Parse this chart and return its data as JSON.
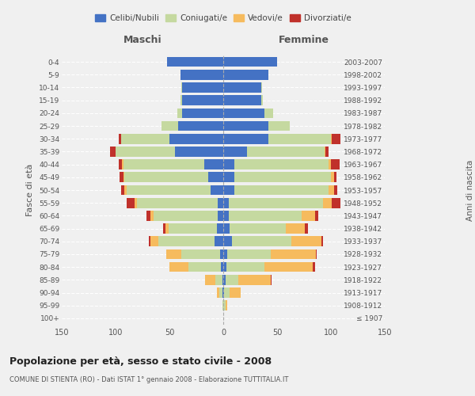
{
  "age_groups": [
    "100+",
    "95-99",
    "90-94",
    "85-89",
    "80-84",
    "75-79",
    "70-74",
    "65-69",
    "60-64",
    "55-59",
    "50-54",
    "45-49",
    "40-44",
    "35-39",
    "30-34",
    "25-29",
    "20-24",
    "15-19",
    "10-14",
    "5-9",
    "0-4"
  ],
  "birth_years": [
    "≤ 1907",
    "1908-1912",
    "1913-1917",
    "1918-1922",
    "1923-1927",
    "1928-1932",
    "1933-1937",
    "1938-1942",
    "1943-1947",
    "1948-1952",
    "1953-1957",
    "1958-1962",
    "1963-1967",
    "1968-1972",
    "1973-1977",
    "1978-1982",
    "1983-1987",
    "1988-1992",
    "1993-1997",
    "1998-2002",
    "2003-2007"
  ],
  "colors": {
    "celibi": "#4472c4",
    "coniugati": "#c5d9a0",
    "vedovi": "#f6bb5e",
    "divorziati": "#c0312b"
  },
  "males": {
    "celibi": [
      0,
      0,
      1,
      1,
      2,
      3,
      8,
      6,
      5,
      5,
      12,
      14,
      18,
      45,
      50,
      42,
      38,
      38,
      38,
      40,
      52
    ],
    "coniugati": [
      0,
      1,
      3,
      6,
      30,
      36,
      52,
      45,
      60,
      75,
      78,
      78,
      75,
      55,
      45,
      15,
      5,
      2,
      1,
      0,
      0
    ],
    "vedovi": [
      0,
      0,
      2,
      10,
      18,
      14,
      8,
      3,
      3,
      2,
      2,
      1,
      1,
      0,
      0,
      0,
      0,
      0,
      0,
      0,
      0
    ],
    "divorziati": [
      0,
      0,
      0,
      0,
      0,
      0,
      1,
      2,
      3,
      8,
      3,
      3,
      3,
      5,
      2,
      0,
      0,
      0,
      0,
      0,
      0
    ]
  },
  "females": {
    "celibi": [
      0,
      0,
      1,
      2,
      3,
      4,
      8,
      6,
      5,
      5,
      10,
      10,
      10,
      22,
      42,
      42,
      38,
      35,
      35,
      42,
      50
    ],
    "coniugati": [
      0,
      2,
      5,
      12,
      35,
      40,
      55,
      52,
      68,
      88,
      88,
      90,
      88,
      72,
      58,
      20,
      8,
      2,
      1,
      0,
      0
    ],
    "vedovi": [
      0,
      2,
      10,
      30,
      45,
      42,
      28,
      18,
      12,
      8,
      5,
      3,
      2,
      1,
      1,
      0,
      0,
      0,
      0,
      0,
      0
    ],
    "divorziati": [
      0,
      0,
      0,
      1,
      2,
      1,
      2,
      3,
      3,
      8,
      3,
      2,
      8,
      3,
      8,
      0,
      0,
      0,
      0,
      0,
      0
    ]
  },
  "title": "Popolazione per età, sesso e stato civile - 2008",
  "subtitle": "COMUNE DI STIENTA (RO) - Dati ISTAT 1° gennaio 2008 - Elaborazione TUTTITALIA.IT",
  "xlabel_left": "Maschi",
  "xlabel_right": "Femmine",
  "ylabel_left": "Fasce di età",
  "ylabel_right": "Anni di nascita",
  "xlim": 150,
  "legend_labels": [
    "Celibi/Nubili",
    "Coniugati/e",
    "Vedovi/e",
    "Divorziati/e"
  ],
  "background_color": "#f0f0f0"
}
